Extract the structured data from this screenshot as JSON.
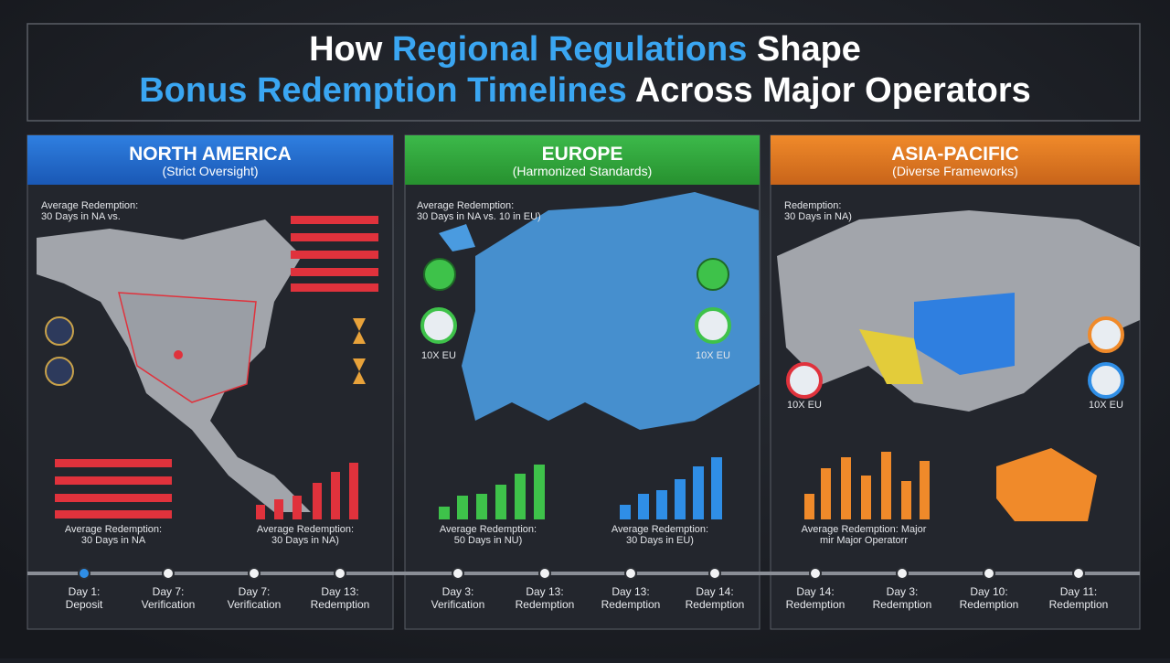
{
  "header": {
    "title_parts": [
      "How ",
      "Regional Regulations",
      " Shape",
      "Bonus Redemption Timelines",
      " Across Major Operators"
    ]
  },
  "panels": [
    {
      "name": "NORTH AMERICA",
      "subtitle": "(Strict Oversight)",
      "captions": [
        [
          "Average Redemption:",
          "30 Days in NA vs."
        ],
        [
          "Average Redemption:",
          "30 Days in NA"
        ],
        [
          "Average Redemption:",
          "30 Days in NA)"
        ]
      ]
    },
    {
      "name": "EUROPE",
      "subtitle": "(Harmonized Standards)",
      "captions": [
        [
          "Average Redemption:",
          "30 Days in NA vs. 10 in EU)"
        ],
        [
          "Average Redemption:",
          "50 Days in NU)"
        ],
        [
          "Average Redemption:",
          "30 Days in EU)"
        ]
      ],
      "badges": [
        "10X EU",
        "10X EU"
      ]
    },
    {
      "name": "ASIA-PACIFIC",
      "subtitle": "(Diverse Frameworks)",
      "captions": [
        [
          "Redemption:",
          "30 Days in NA)"
        ],
        [
          "Average Redemption: Major",
          "mir Major Operatorr"
        ]
      ],
      "badges": [
        "10X EU",
        "10X EU"
      ]
    }
  ],
  "timeline": [
    {
      "day": "Day 1:",
      "step": "Deposit"
    },
    {
      "day": "Day 7:",
      "step": "Verification"
    },
    {
      "day": "Day 7:",
      "step": "Verification"
    },
    {
      "day": "Day 13:",
      "step": "Redemption"
    },
    {
      "day": "Day 3:",
      "step": "Verification"
    },
    {
      "day": "Day 13:",
      "step": "Redemption"
    },
    {
      "day": "Day 13:",
      "step": "Redemption"
    },
    {
      "day": "Day 14:",
      "step": "Redemption"
    },
    {
      "day": "Day 14:",
      "step": "Redemption"
    },
    {
      "day": "Day 3:",
      "step": "Redemption"
    },
    {
      "day": "Day 10:",
      "step": "Redemption"
    },
    {
      "day": "Day 11:",
      "step": "Redemption"
    }
  ]
}
